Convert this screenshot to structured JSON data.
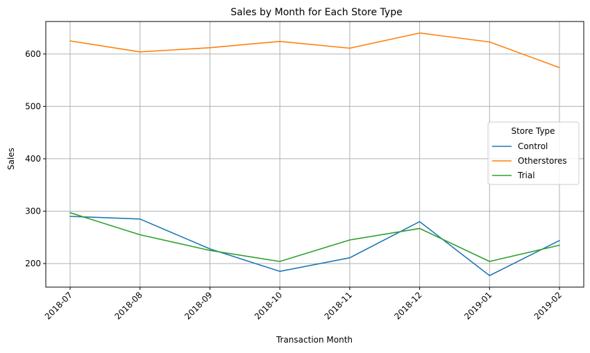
{
  "chart_data": {
    "type": "line",
    "title": "Sales by Month for Each Store Type",
    "xlabel": "Transaction Month",
    "ylabel": "Sales",
    "categories": [
      "2018-07",
      "2018-08",
      "2018-09",
      "2018-10",
      "2018-11",
      "2018-12",
      "2019-01",
      "2019-02"
    ],
    "ylim": [
      155,
      662
    ],
    "yticks": [
      200,
      300,
      400,
      500,
      600
    ],
    "grid": true,
    "legend": {
      "title": "Store Type",
      "placement": "center-right"
    },
    "series": [
      {
        "name": "Control",
        "color": "#1f77b4",
        "values": [
          290,
          285,
          228,
          185,
          211,
          280,
          177,
          244
        ]
      },
      {
        "name": "Otherstores",
        "color": "#ff7f0e",
        "values": [
          625,
          604,
          612,
          624,
          611,
          640,
          623,
          574
        ]
      },
      {
        "name": "Trial",
        "color": "#2ca02c",
        "values": [
          297,
          255,
          225,
          204,
          245,
          267,
          204,
          235
        ]
      }
    ]
  }
}
